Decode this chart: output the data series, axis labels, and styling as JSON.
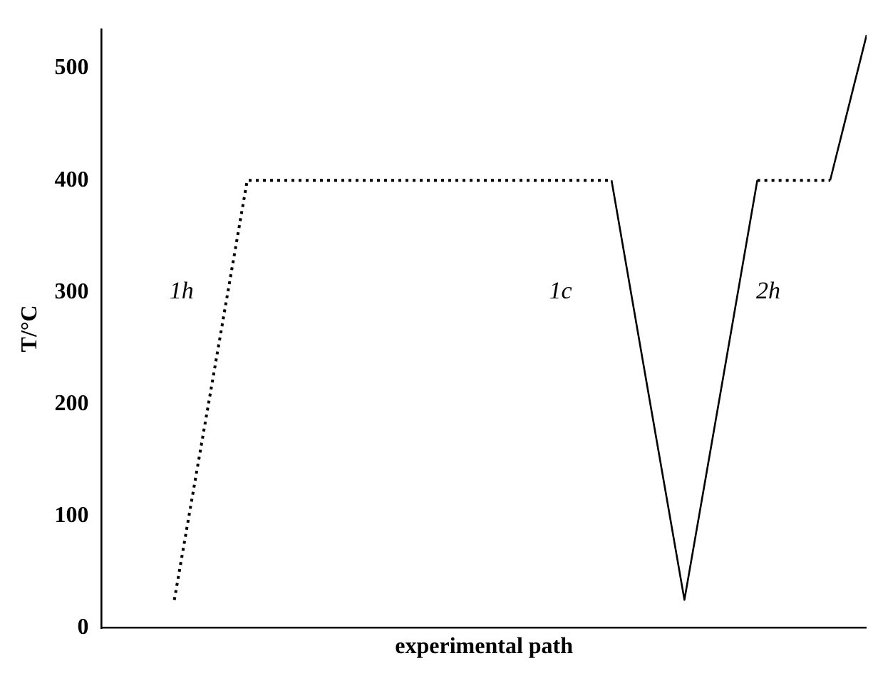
{
  "chart_data": {
    "type": "line",
    "xlabel": "experimental path",
    "ylabel": "T/°C",
    "categories": [
      null,
      null,
      null,
      null,
      null,
      null,
      null,
      null,
      null,
      null,
      null,
      null,
      null,
      null,
      null,
      null,
      null,
      null,
      null,
      null,
      null,
      null
    ],
    "series": [
      {
        "color": "#000000",
        "line_style": "dotted",
        "values": [
          null,
          null,
          25,
          212,
          400,
          400,
          400,
          400,
          400,
          400,
          400,
          400,
          400,
          400,
          400,
          null,
          null,
          null,
          null,
          null,
          null,
          null
        ]
      },
      {
        "color": "#000000",
        "line_style": "solid",
        "values": [
          null,
          null,
          null,
          null,
          null,
          null,
          null,
          null,
          null,
          null,
          null,
          null,
          null,
          null,
          400,
          212,
          25,
          212,
          400,
          null,
          null,
          null
        ]
      },
      {
        "color": "#000000",
        "line_style": "dotted",
        "values": [
          null,
          null,
          null,
          null,
          null,
          null,
          null,
          null,
          null,
          null,
          null,
          null,
          null,
          null,
          null,
          null,
          null,
          null,
          400,
          400,
          400,
          null
        ]
      },
      {
        "color": "#000000",
        "line_style": "solid",
        "values": [
          null,
          null,
          null,
          null,
          null,
          null,
          null,
          null,
          null,
          null,
          null,
          null,
          null,
          null,
          null,
          null,
          null,
          null,
          null,
          null,
          400,
          530
        ]
      }
    ],
    "ylim": [
      0,
      535
    ],
    "yticks": [
      0,
      100,
      200,
      300,
      400,
      500
    ],
    "grid": false,
    "legend": false,
    "marker": "none",
    "tick_labels": "y",
    "annotations": [
      "1h",
      "1c",
      "2h"
    ]
  }
}
